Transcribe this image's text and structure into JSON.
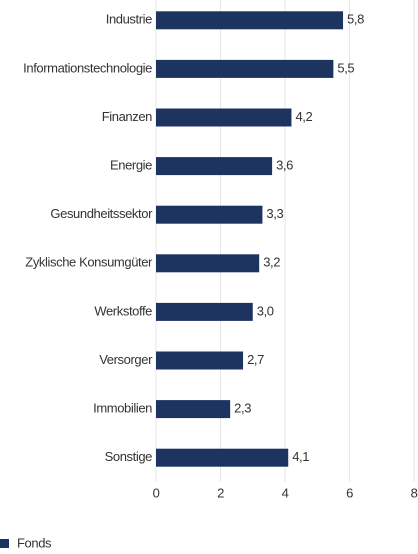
{
  "chart_data": {
    "type": "barh",
    "categories": [
      "Industrie",
      "Informationstechnologie",
      "Finanzen",
      "Energie",
      "Gesundheitssektor",
      "Zyklische Konsumgüter",
      "Werkstoffe",
      "Versorger",
      "Immobilien",
      "Sonstige"
    ],
    "series": [
      {
        "name": "Fonds",
        "color": "#1d3461",
        "values": [
          5.8,
          5.5,
          4.2,
          3.6,
          3.3,
          3.2,
          3.0,
          2.7,
          2.3,
          4.1
        ],
        "value_labels": [
          "5,8",
          "5,5",
          "4,2",
          "3,6",
          "3,3",
          "3,2",
          "3,0",
          "2,7",
          "2,3",
          "4,1"
        ]
      }
    ],
    "xlim": [
      0,
      8
    ],
    "xticks": [
      0,
      2,
      4,
      6,
      8
    ],
    "grid": true,
    "legend": "bottom-left"
  }
}
